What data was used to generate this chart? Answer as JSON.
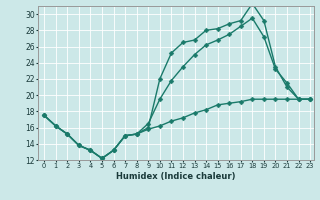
{
  "xlabel": "Humidex (Indice chaleur)",
  "bg_color": "#cce8e8",
  "grid_color": "#ffffff",
  "line_color": "#1a7a6a",
  "xlim": [
    -0.5,
    23.3
  ],
  "ylim": [
    12,
    31
  ],
  "xticks": [
    0,
    1,
    2,
    3,
    4,
    5,
    6,
    7,
    8,
    9,
    10,
    11,
    12,
    13,
    14,
    15,
    16,
    17,
    18,
    19,
    20,
    21,
    22,
    23
  ],
  "yticks": [
    12,
    14,
    16,
    18,
    20,
    22,
    24,
    26,
    28,
    30
  ],
  "line1_x": [
    0,
    1,
    2,
    3,
    4,
    5,
    6,
    7,
    8,
    9,
    10,
    11,
    12,
    13,
    14,
    15,
    16,
    17,
    18,
    19,
    20,
    21,
    22,
    23
  ],
  "line1_y": [
    17.5,
    16.2,
    15.2,
    13.8,
    13.2,
    12.2,
    13.2,
    15.0,
    15.2,
    15.8,
    16.2,
    16.8,
    17.2,
    17.8,
    18.2,
    18.8,
    19.0,
    19.2,
    19.5,
    19.5,
    19.5,
    19.5,
    19.5,
    19.5
  ],
  "line2_x": [
    0,
    1,
    2,
    3,
    4,
    5,
    6,
    7,
    8,
    9,
    10,
    11,
    12,
    13,
    14,
    15,
    16,
    17,
    18,
    19,
    20,
    21,
    22,
    23
  ],
  "line2_y": [
    17.5,
    16.2,
    15.2,
    13.8,
    13.2,
    12.2,
    13.2,
    15.0,
    15.2,
    16.0,
    22.0,
    25.2,
    26.5,
    26.8,
    28.0,
    28.2,
    28.8,
    29.2,
    31.3,
    29.2,
    23.5,
    21.0,
    19.5,
    19.5
  ],
  "line3_x": [
    0,
    1,
    2,
    3,
    4,
    5,
    6,
    7,
    8,
    9,
    10,
    11,
    12,
    13,
    14,
    15,
    16,
    17,
    18,
    19,
    20,
    21,
    22,
    23
  ],
  "line3_y": [
    17.5,
    16.2,
    15.2,
    13.8,
    13.2,
    12.2,
    13.2,
    15.0,
    15.2,
    16.5,
    19.5,
    21.8,
    23.5,
    25.0,
    26.2,
    26.8,
    27.5,
    28.5,
    29.5,
    27.2,
    23.2,
    21.5,
    19.5,
    19.5
  ],
  "marker_size": 2.5,
  "line_width": 1.0
}
